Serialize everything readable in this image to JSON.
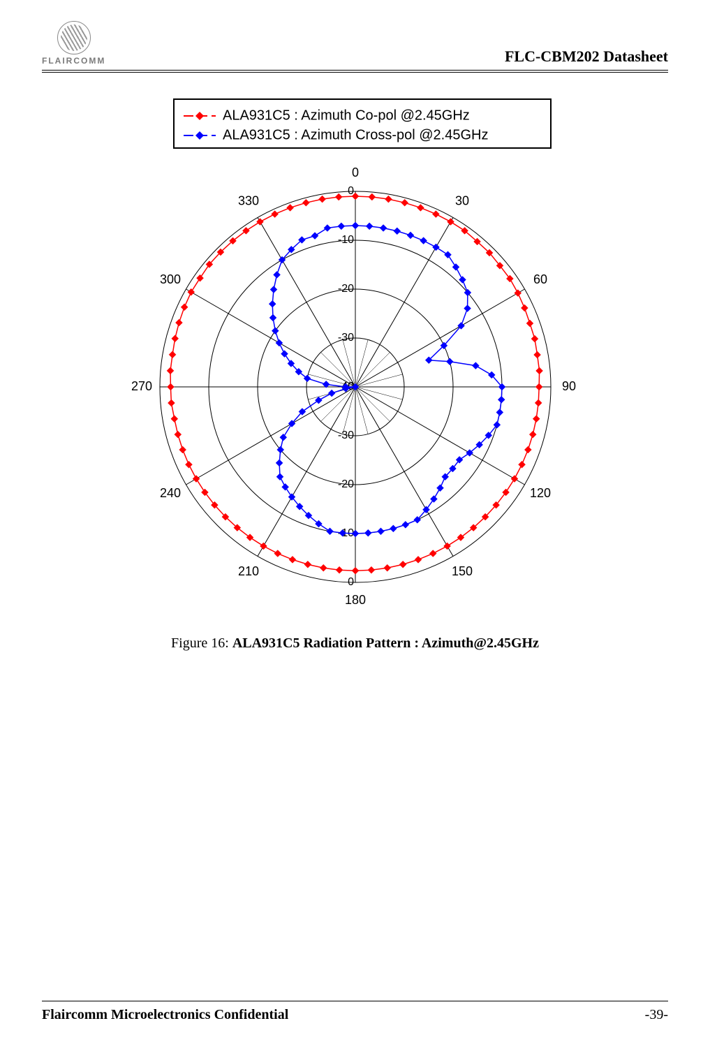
{
  "header": {
    "logo_text": "FLAIRCOMM",
    "doc_title": "FLC-CBM202 Datasheet"
  },
  "footer": {
    "left": "Flaircomm Microelectronics Confidential",
    "right": "-39-"
  },
  "caption": {
    "prefix": "Figure 16:",
    "text": "ALA931C5 Radiation Pattern : Azimuth@2.45GHz"
  },
  "chart": {
    "type": "polar",
    "background_color": "#ffffff",
    "axis_color": "#000000",
    "grid_color": "#000000",
    "angle_labels": [
      "0",
      "30",
      "60",
      "90",
      "120",
      "150",
      "180",
      "210",
      "240",
      "270",
      "300",
      "330"
    ],
    "angle_label_fontsize": 18,
    "angle_label_color": "#000000",
    "radial_ticks": [
      0,
      -10,
      -20,
      -30,
      -40,
      -40,
      -30,
      -20,
      -10,
      0
    ],
    "radial_tick_labels_top": [
      "0",
      "-10",
      "-20",
      "-30",
      "-40"
    ],
    "radial_tick_labels_bottom": [
      "-40",
      "-30",
      "-20",
      "-10",
      "0"
    ],
    "radial_label_fontsize": 16,
    "r_min": -40,
    "r_max": 0,
    "legend": {
      "border_color": "#000000",
      "bg": "#ffffff",
      "fontsize": 20,
      "items": [
        {
          "label": "ALA931C5 : Azimuth Co-pol @2.45GHz",
          "color": "#ff0000",
          "marker": "diamond"
        },
        {
          "label": "ALA931C5 : Azimuth Cross-pol @2.45GHz",
          "color": "#0000ff",
          "marker": "diamond"
        }
      ]
    },
    "series": [
      {
        "name": "co-pol",
        "color": "#ff0000",
        "line_width": 1.5,
        "marker": "diamond",
        "marker_size": 5,
        "angles_deg": [
          0,
          5,
          10,
          15,
          20,
          25,
          30,
          35,
          40,
          45,
          50,
          55,
          60,
          65,
          70,
          75,
          80,
          85,
          90,
          95,
          100,
          105,
          110,
          115,
          120,
          125,
          130,
          135,
          140,
          145,
          150,
          155,
          160,
          165,
          170,
          175,
          180,
          185,
          190,
          195,
          200,
          205,
          210,
          215,
          220,
          225,
          230,
          235,
          240,
          245,
          250,
          255,
          260,
          265,
          270,
          275,
          280,
          285,
          290,
          295,
          300,
          305,
          310,
          315,
          320,
          325,
          330,
          335,
          340,
          345,
          350,
          355
        ],
        "values": [
          -1.0,
          -1.0,
          -1.0,
          -1.0,
          -1.0,
          -1.0,
          -1.0,
          -1.0,
          -1.2,
          -1.2,
          -1.4,
          -1.4,
          -1.6,
          -1.8,
          -2.0,
          -2.0,
          -2.2,
          -2.2,
          -2.4,
          -2.4,
          -2.4,
          -2.4,
          -2.4,
          -2.4,
          -2.4,
          -2.4,
          -2.4,
          -2.4,
          -2.4,
          -2.4,
          -2.4,
          -2.4,
          -2.4,
          -2.4,
          -2.4,
          -2.4,
          -2.4,
          -2.4,
          -2.4,
          -2.4,
          -2.4,
          -2.4,
          -2.4,
          -2.4,
          -2.4,
          -2.4,
          -2.4,
          -2.4,
          -2.4,
          -2.4,
          -2.4,
          -2.4,
          -2.4,
          -2.2,
          -2.2,
          -2.0,
          -2.0,
          -1.8,
          -1.6,
          -1.4,
          -1.2,
          -1.2,
          -1.0,
          -1.0,
          -1.0,
          -1.0,
          -1.0,
          -1.0,
          -1.0,
          -1.0,
          -1.0,
          -1.0
        ]
      },
      {
        "name": "cross-pol",
        "color": "#0000ff",
        "line_width": 1.5,
        "marker": "diamond",
        "marker_size": 5,
        "angles_deg": [
          0,
          5,
          10,
          15,
          20,
          25,
          30,
          35,
          40,
          45,
          50,
          55,
          60,
          65,
          70,
          75,
          80,
          85,
          90,
          95,
          100,
          105,
          110,
          115,
          120,
          125,
          130,
          135,
          140,
          145,
          150,
          155,
          160,
          165,
          170,
          175,
          180,
          185,
          190,
          195,
          200,
          205,
          210,
          215,
          220,
          225,
          230,
          235,
          240,
          245,
          250,
          255,
          260,
          265,
          270,
          275,
          280,
          285,
          290,
          295,
          300,
          305,
          310,
          315,
          320,
          325,
          330,
          335,
          340,
          345,
          350,
          355
        ],
        "values": [
          -7,
          -7,
          -7,
          -7,
          -7,
          -7,
          -7,
          -7,
          -8,
          -9,
          -10,
          -12,
          -15,
          -20,
          -24,
          -20,
          -15,
          -12,
          -10,
          -10,
          -10,
          -10,
          -11,
          -12,
          -13,
          -14,
          -14,
          -14,
          -13,
          -12,
          -11,
          -10,
          -10,
          -10,
          -10,
          -10,
          -10,
          -10,
          -10,
          -11,
          -12,
          -13,
          -14,
          -15,
          -16,
          -18,
          -20,
          -22,
          -25,
          -28,
          -32,
          -35,
          -38,
          -40,
          -38,
          -34,
          -30,
          -28,
          -26,
          -24,
          -22,
          -20,
          -18,
          -16,
          -14,
          -12,
          -10,
          -9,
          -8,
          -8,
          -7,
          -7
        ]
      }
    ]
  }
}
